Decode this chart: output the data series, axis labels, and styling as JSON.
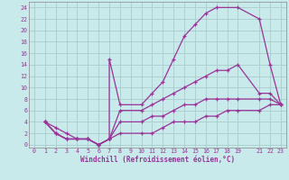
{
  "xlabel": "Windchill (Refroidissement éolien,°C)",
  "bg_color": "#c8eaea",
  "grid_color": "#aacccc",
  "line_color": "#993399",
  "xlim": [
    -0.5,
    23.5
  ],
  "ylim": [
    -0.5,
    25
  ],
  "xticks": [
    0,
    1,
    2,
    3,
    4,
    5,
    6,
    7,
    8,
    9,
    10,
    11,
    12,
    13,
    14,
    15,
    16,
    17,
    18,
    19,
    21,
    22,
    23
  ],
  "yticks": [
    0,
    2,
    4,
    6,
    8,
    10,
    12,
    14,
    16,
    18,
    20,
    22,
    24
  ],
  "curve1_x": [
    1,
    2,
    3,
    4,
    5,
    6,
    7,
    7,
    8,
    10,
    11,
    12,
    13,
    14,
    15,
    16,
    17,
    19,
    21,
    22,
    23
  ],
  "curve1_y": [
    4,
    3,
    2,
    1,
    1,
    0,
    1,
    15,
    7,
    7,
    9,
    11,
    15,
    19,
    21,
    23,
    24,
    24,
    22,
    14,
    7
  ],
  "curve2_x": [
    1,
    2,
    3,
    4,
    5,
    6,
    7,
    8,
    10,
    11,
    12,
    13,
    14,
    15,
    16,
    17,
    18,
    19,
    21,
    22,
    23
  ],
  "curve2_y": [
    4,
    2,
    1,
    1,
    1,
    0,
    1,
    6,
    6,
    7,
    8,
    9,
    10,
    11,
    12,
    13,
    13,
    14,
    9,
    9,
    7
  ],
  "curve3_x": [
    1,
    2,
    3,
    4,
    5,
    6,
    7,
    8,
    10,
    11,
    12,
    13,
    14,
    15,
    16,
    17,
    18,
    19,
    21,
    22,
    23
  ],
  "curve3_y": [
    4,
    2,
    1,
    1,
    1,
    0,
    1,
    4,
    4,
    5,
    5,
    6,
    7,
    7,
    8,
    8,
    8,
    8,
    8,
    8,
    7
  ],
  "curve4_x": [
    1,
    2,
    3,
    4,
    5,
    6,
    7,
    8,
    10,
    11,
    12,
    13,
    14,
    15,
    16,
    17,
    18,
    19,
    21,
    22,
    23
  ],
  "curve4_y": [
    4,
    2,
    1,
    1,
    1,
    0,
    1,
    2,
    2,
    2,
    3,
    4,
    4,
    4,
    5,
    5,
    6,
    6,
    6,
    7,
    7
  ],
  "xlabel_fontsize": 5.5,
  "tick_fontsize": 4.8
}
